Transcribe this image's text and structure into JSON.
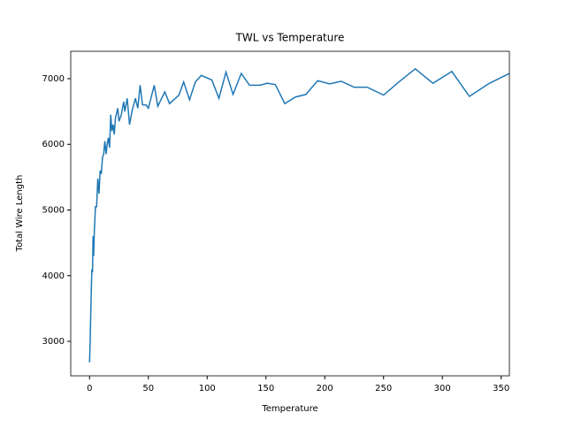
{
  "chart_data": {
    "type": "line",
    "title": "TWL vs Temperature",
    "x_label": "Temperature",
    "y_label": "Total Wire Length",
    "x": [
      0,
      0.5,
      1,
      1.5,
      2,
      2.5,
      3,
      3.5,
      4,
      5,
      6,
      7,
      8,
      9,
      10,
      11,
      12,
      13,
      14,
      15,
      16,
      17,
      18,
      19,
      20,
      21,
      22,
      24,
      25,
      27,
      29,
      30,
      32,
      34,
      36,
      39,
      41,
      43,
      45,
      48,
      50,
      55,
      58,
      64,
      68,
      76,
      80,
      85,
      90,
      95,
      104,
      110,
      116,
      122,
      129,
      136,
      145,
      151,
      158,
      166,
      175,
      184,
      194,
      204,
      214,
      225,
      236,
      250,
      263,
      277,
      292,
      308,
      323,
      340,
      357
    ],
    "series": [
      {
        "name": "TWL",
        "color": "#1f77b4",
        "values": [
          2680,
          3000,
          3400,
          3800,
          4100,
          4050,
          4600,
          4300,
          4650,
          5050,
          5050,
          5480,
          5250,
          5600,
          5550,
          5800,
          5850,
          6050,
          5850,
          6000,
          6100,
          5950,
          6450,
          6200,
          6300,
          6150,
          6400,
          6550,
          6350,
          6450,
          6650,
          6500,
          6700,
          6300,
          6500,
          6700,
          6550,
          6900,
          6600,
          6600,
          6550,
          6900,
          6580,
          6800,
          6620,
          6750,
          6950,
          6680,
          6950,
          7050,
          6980,
          6700,
          7100,
          6760,
          7080,
          6900,
          6900,
          6930,
          6910,
          6620,
          6720,
          6760,
          6970,
          6920,
          6960,
          6870,
          6870,
          6750,
          6950,
          7150,
          6930,
          7110,
          6730,
          6930,
          7080
        ]
      }
    ],
    "xlim": [
      -16,
      357
    ],
    "ylim": [
      2475,
      7417
    ],
    "xticks": [
      0,
      50,
      100,
      150,
      200,
      250,
      300,
      350
    ],
    "yticks": [
      3000,
      4000,
      5000,
      6000,
      7000
    ]
  }
}
